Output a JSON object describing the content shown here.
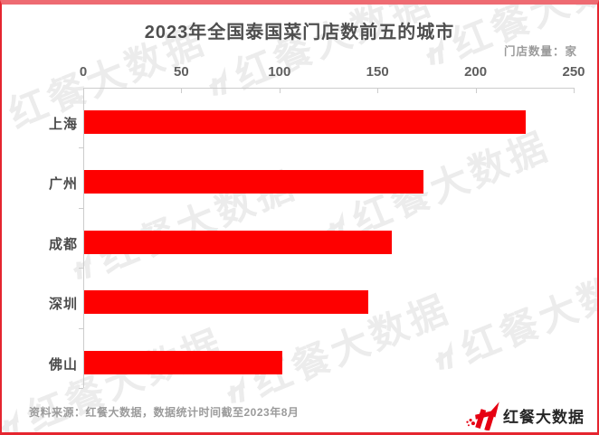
{
  "header": {
    "title": "2023年全国泰国菜门店数前五的城市",
    "unit_label": "门店数量：家"
  },
  "chart_data": {
    "type": "bar",
    "orientation": "horizontal",
    "title": "2023年全国泰国菜门店数前五的城市",
    "categories": [
      "上海",
      "广州",
      "成都",
      "深圳",
      "佛山"
    ],
    "values": [
      225,
      173,
      157,
      145,
      101
    ],
    "xlim": [
      0,
      250
    ],
    "x_ticks": [
      0,
      50,
      100,
      150,
      200,
      250
    ],
    "unit": "家",
    "bar_color": "#fe0000",
    "grid": false,
    "legend": "none"
  },
  "footer": {
    "source_note": "资料来源：红餐大数据，数据统计时间截至2023年8月",
    "brand": "红餐大数据"
  },
  "watermark": {
    "text": "红餐大数据"
  },
  "icons": {
    "brand_logo": "hongcan-h-arrow-icon"
  },
  "colors": {
    "bar": "#fe0000",
    "border": "#e5252f",
    "top_band": "#ee6b72",
    "title_text": "#4f4f4f",
    "axis_text": "#5f5f5f",
    "muted_text": "#9b9b9b",
    "logo_red": "#e60012"
  }
}
